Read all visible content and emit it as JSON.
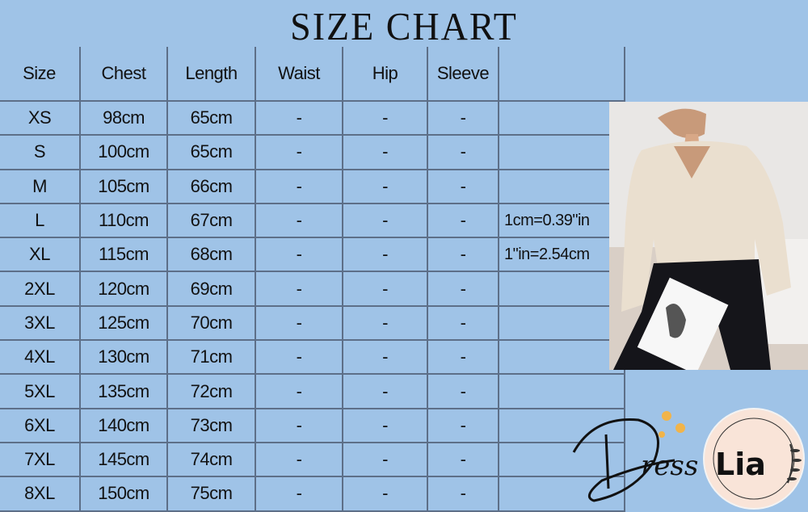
{
  "title": "SIZE CHART",
  "table": {
    "headers": [
      "Size",
      "Chest",
      "Length",
      "Waist",
      "Hip",
      "Sleeve",
      ""
    ],
    "rows": [
      [
        "XS",
        "98cm",
        "65cm",
        "-",
        "-",
        "-",
        ""
      ],
      [
        "S",
        "100cm",
        "65cm",
        "-",
        "-",
        "-",
        ""
      ],
      [
        "M",
        "105cm",
        "66cm",
        "-",
        "-",
        "-",
        ""
      ],
      [
        "L",
        "110cm",
        "67cm",
        "-",
        "-",
        "-",
        "1cm=0.39\"in"
      ],
      [
        "XL",
        "115cm",
        "68cm",
        "-",
        "-",
        "-",
        "1\"in=2.54cm"
      ],
      [
        "2XL",
        "120cm",
        "69cm",
        "-",
        "-",
        "-",
        ""
      ],
      [
        "3XL",
        "125cm",
        "70cm",
        "-",
        "-",
        "-",
        ""
      ],
      [
        "4XL",
        "130cm",
        "71cm",
        "-",
        "-",
        "-",
        ""
      ],
      [
        "5XL",
        "135cm",
        "72cm",
        "-",
        "-",
        "-",
        ""
      ],
      [
        "6XL",
        "140cm",
        "73cm",
        "-",
        "-",
        "-",
        ""
      ],
      [
        "7XL",
        "145cm",
        "74cm",
        "-",
        "-",
        "-",
        ""
      ],
      [
        "8XL",
        "150cm",
        "75cm",
        "-",
        "-",
        "-",
        ""
      ]
    ]
  },
  "logo": {
    "text": "DressLia"
  },
  "colors": {
    "background": "#9fc3e7",
    "grid": "#5d6f88"
  }
}
